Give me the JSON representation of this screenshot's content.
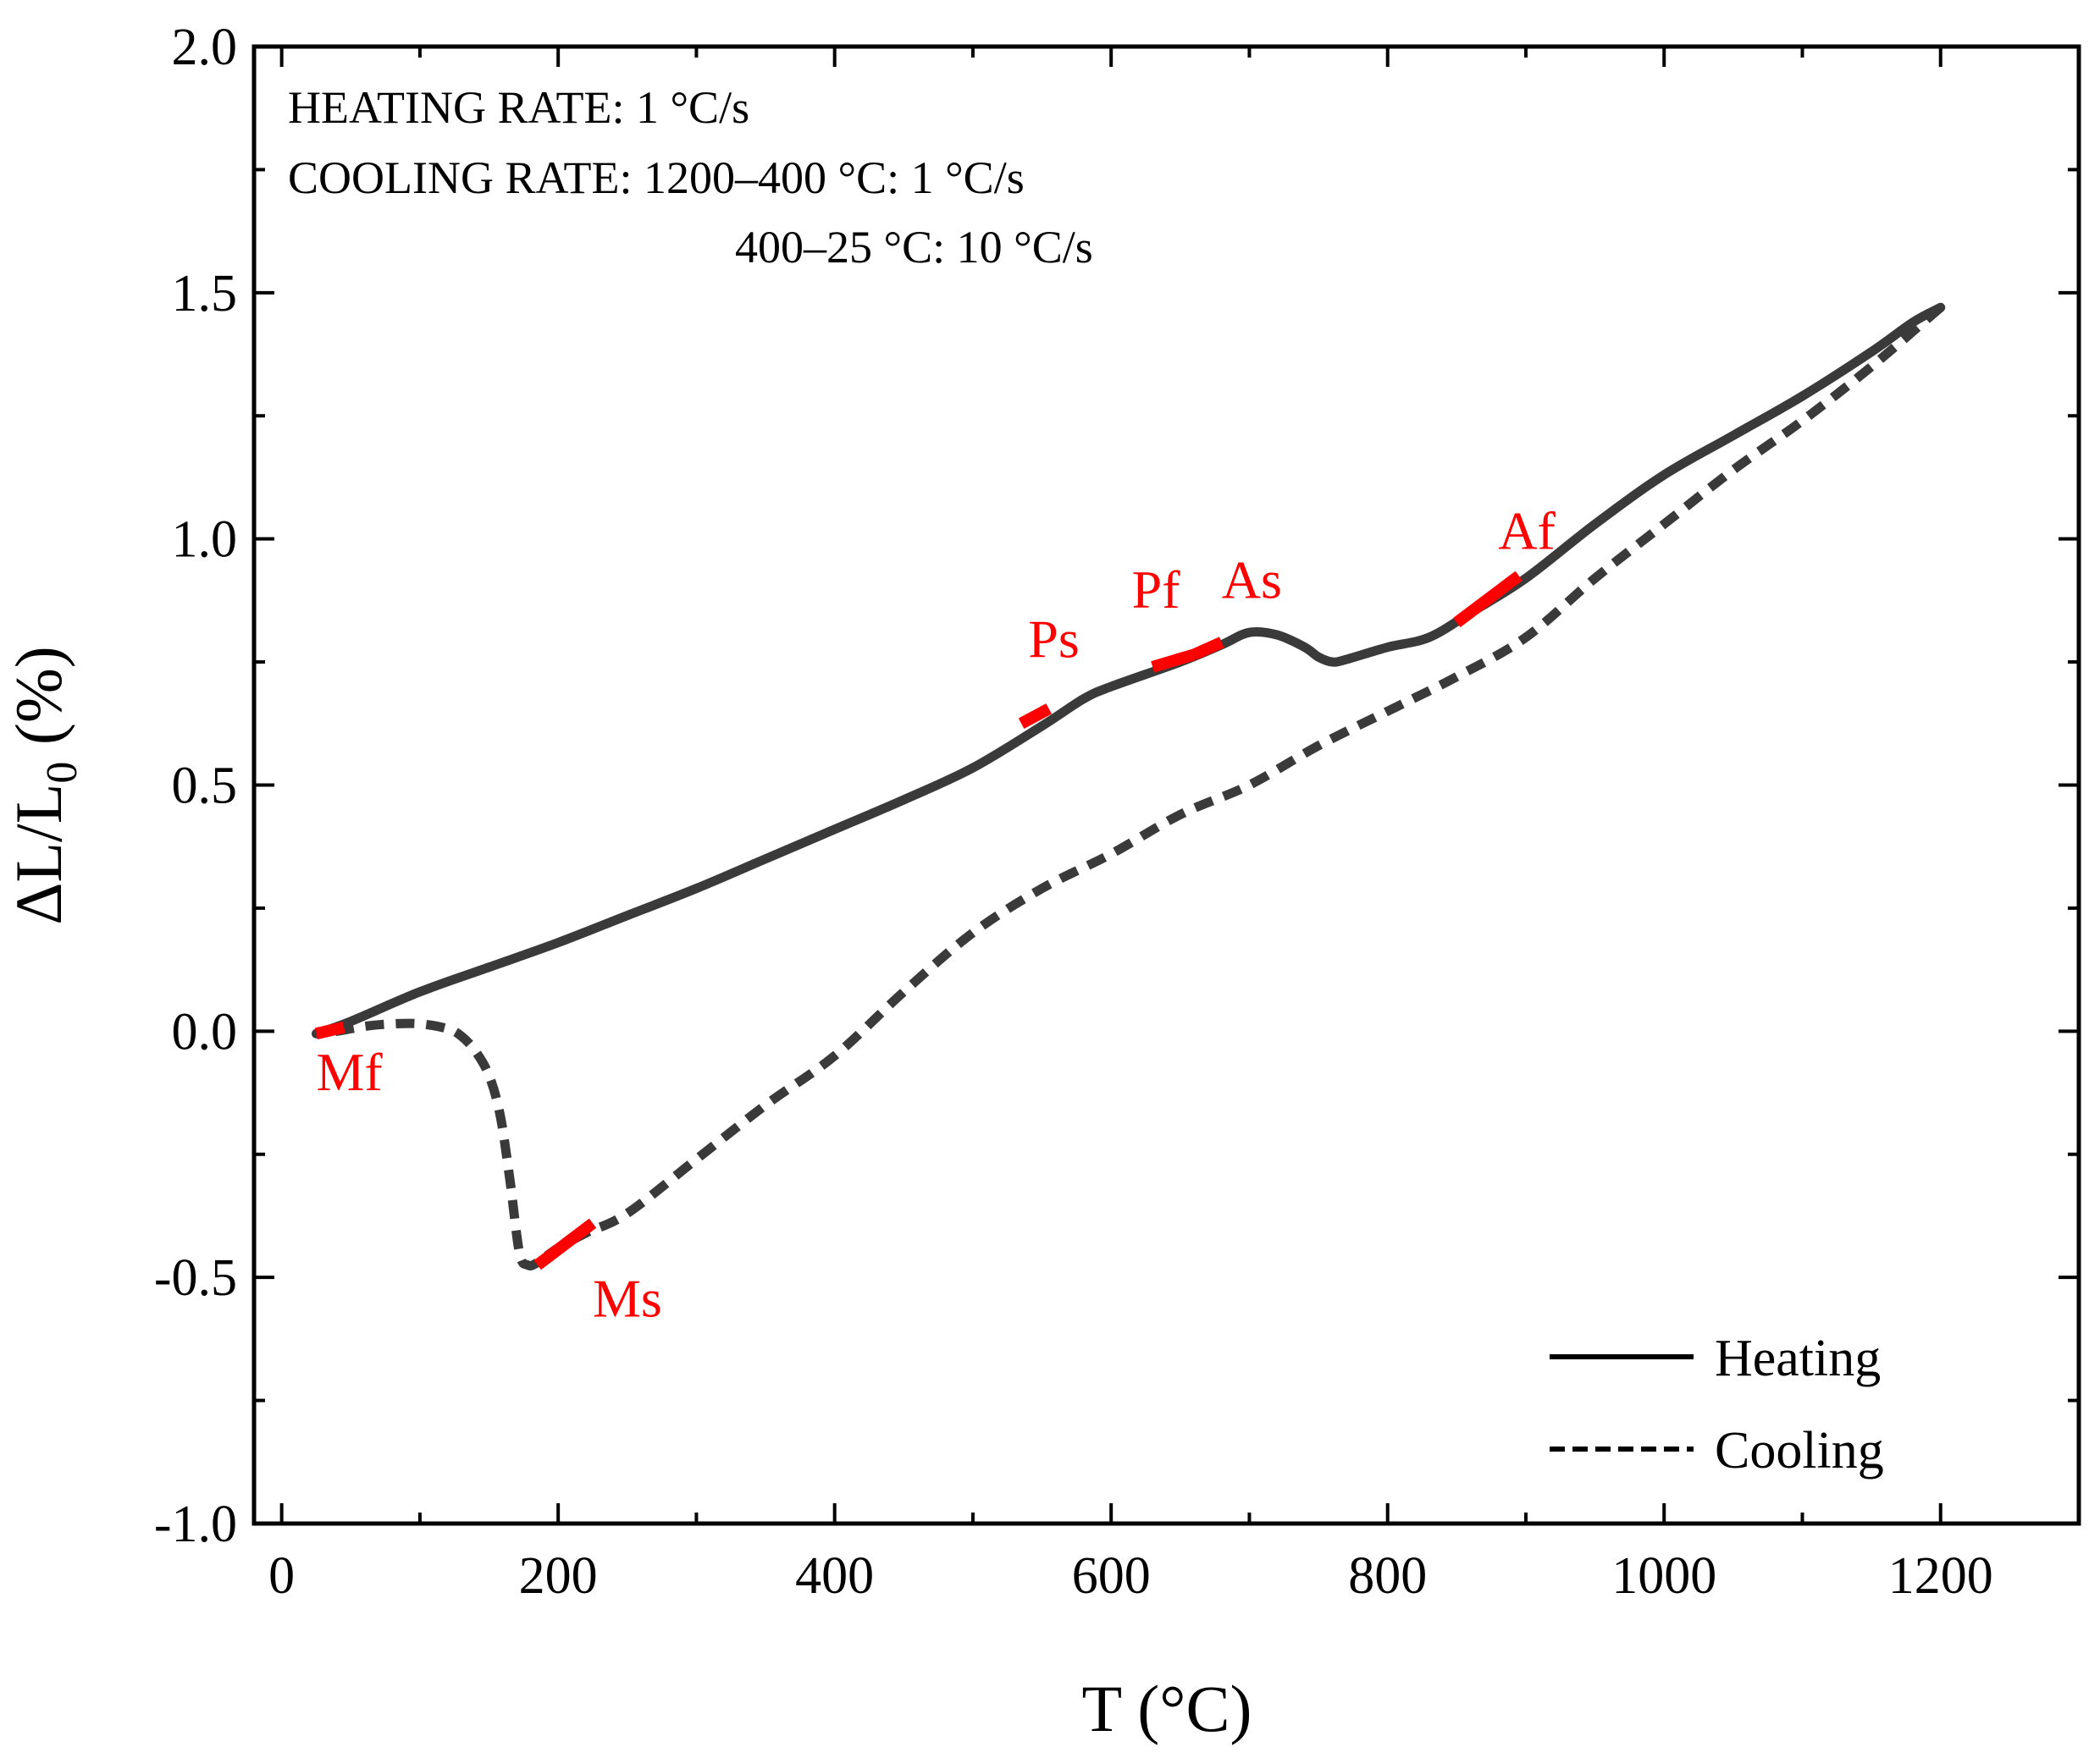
{
  "chart_data": {
    "type": "line",
    "title": "",
    "xlabel": "T (°C)",
    "ylabel_main": "ΔL/L",
    "ylabel_sub": "0",
    "ylabel_unit": " (%)",
    "xlim": [
      -20,
      1300
    ],
    "ylim": [
      -1.0,
      2.0
    ],
    "x_ticks": [
      0,
      200,
      400,
      600,
      800,
      1000,
      1200
    ],
    "x_tick_labels": [
      "0",
      "200",
      "400",
      "600",
      "800",
      "1000",
      "1200"
    ],
    "x_minor_ticks": [
      100,
      300,
      500,
      700,
      900,
      1100,
      1300
    ],
    "y_ticks": [
      -1.0,
      -0.5,
      0.0,
      0.5,
      1.0,
      1.5,
      2.0
    ],
    "y_tick_labels": [
      "-1.0",
      "-0.5",
      "0.0",
      "0.5",
      "1.0",
      "1.5",
      "2.0"
    ],
    "y_minor_ticks": [
      -0.75,
      -0.25,
      0.25,
      0.75,
      1.25,
      1.75
    ],
    "grid": false,
    "legend_position": "bottom-right",
    "line_color": "#3a3a3a",
    "marker_color": "#ff0000",
    "annotations": [
      "HEATING RATE: 1 °C/s",
      "COOLING RATE: 1200–400 °C: 1 °C/s",
      "400–25 °C: 10 °C/s"
    ],
    "series": [
      {
        "name": "Heating",
        "style": "solid",
        "x": [
          25,
          50,
          100,
          150,
          200,
          250,
          300,
          350,
          400,
          450,
          500,
          550,
          580,
          600,
          650,
          680,
          700,
          720,
          740,
          750,
          760,
          770,
          800,
          830,
          860,
          900,
          950,
          1000,
          1050,
          1100,
          1150,
          1180,
          1200
        ],
        "y": [
          -0.005,
          0.02,
          0.08,
          0.13,
          0.18,
          0.235,
          0.29,
          0.35,
          0.41,
          0.47,
          0.535,
          0.62,
          0.675,
          0.7,
          0.75,
          0.785,
          0.81,
          0.805,
          0.78,
          0.76,
          0.75,
          0.755,
          0.78,
          0.8,
          0.85,
          0.92,
          1.03,
          1.13,
          1.21,
          1.29,
          1.38,
          1.44,
          1.47
        ]
      },
      {
        "name": "Cooling",
        "style": "dashed",
        "x": [
          1200,
          1150,
          1100,
          1050,
          1000,
          950,
          900,
          850,
          800,
          750,
          700,
          650,
          600,
          550,
          500,
          450,
          400,
          350,
          300,
          250,
          220,
          200,
          185,
          178,
          172,
          165,
          158,
          150,
          140,
          130,
          120,
          100,
          80,
          60,
          40,
          25
        ],
        "y": [
          1.47,
          1.35,
          1.24,
          1.14,
          1.03,
          0.92,
          0.8,
          0.72,
          0.65,
          0.58,
          0.5,
          0.44,
          0.36,
          0.29,
          0.2,
          0.08,
          -0.05,
          -0.15,
          -0.26,
          -0.37,
          -0.41,
          -0.44,
          -0.47,
          -0.475,
          -0.45,
          -0.3,
          -0.17,
          -0.09,
          -0.04,
          -0.01,
          0.005,
          0.015,
          0.015,
          0.01,
          0.0,
          -0.005
        ]
      }
    ],
    "markers": [
      {
        "label": "Mf",
        "x0": 25,
        "y0": -0.005,
        "x1": 45,
        "y1": 0.008,
        "label_x": 25,
        "label_y": -0.12
      },
      {
        "label": "Ps",
        "x0": 535,
        "y0": 0.625,
        "x1": 555,
        "y1": 0.655,
        "label_x": 540,
        "label_y": 0.76
      },
      {
        "label": "Pf",
        "x0": 630,
        "y0": 0.74,
        "x1": 660,
        "y1": 0.765,
        "label_x": 615,
        "label_y": 0.86
      },
      {
        "label": "As",
        "x0": 660,
        "y0": 0.765,
        "x1": 680,
        "y1": 0.79,
        "label_x": 680,
        "label_y": 0.88
      },
      {
        "label": "Af",
        "x0": 850,
        "y0": 0.83,
        "x1": 895,
        "y1": 0.925,
        "label_x": 880,
        "label_y": 0.98
      },
      {
        "label": "Ms",
        "x0": 185,
        "y0": -0.475,
        "x1": 225,
        "y1": -0.39,
        "label_x": 225,
        "label_y": -0.58
      }
    ]
  }
}
